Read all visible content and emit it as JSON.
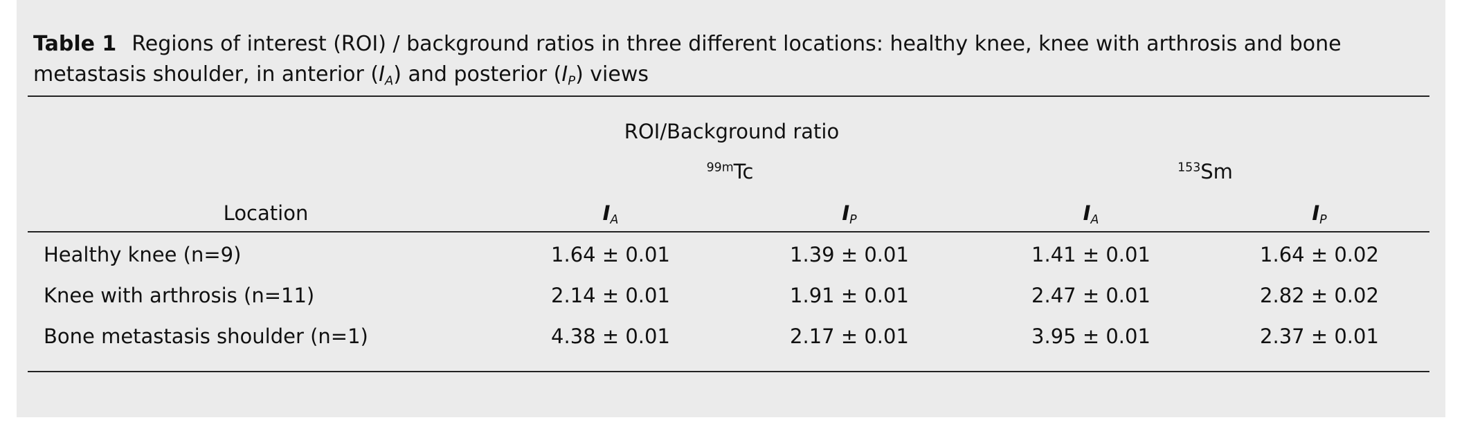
{
  "table": {
    "label": "Table 1",
    "caption": {
      "start": "Regions of interest (ROI) / background ratios in three different locations: healthy knee, knee with arthrosis and bone metastasis shoulder, in anterior (",
      "symbol_1": "I",
      "sub_1": "A",
      "mid": ") and posterior (",
      "symbol_2": "I",
      "sub_2": "P",
      "end": ") views"
    },
    "header": {
      "group": "ROI/Background ratio",
      "isotopes": [
        {
          "sup": "99m",
          "name": "Tc"
        },
        {
          "sup": "153",
          "name": "Sm"
        }
      ],
      "location": "Location",
      "columns": [
        {
          "symbol": "I",
          "sub": "A"
        },
        {
          "symbol": "I",
          "sub": "P"
        },
        {
          "symbol": "I",
          "sub": "A"
        },
        {
          "symbol": "I",
          "sub": "P"
        }
      ]
    },
    "rows": [
      [
        "Healthy knee (n=9)",
        "1.64 ± 0.01",
        "1.39 ± 0.01",
        "1.41 ± 0.01",
        "1.64 ± 0.02"
      ],
      [
        "Knee with arthrosis (n=11)",
        "2.14 ± 0.01",
        "1.91 ± 0.01",
        "2.47 ± 0.01",
        "2.82 ± 0.02"
      ],
      [
        "Bone metastasis shoulder (n=1)",
        "4.38 ± 0.01",
        "2.17 ± 0.01",
        "3.95 ± 0.01",
        "2.37 ± 0.01"
      ]
    ]
  }
}
